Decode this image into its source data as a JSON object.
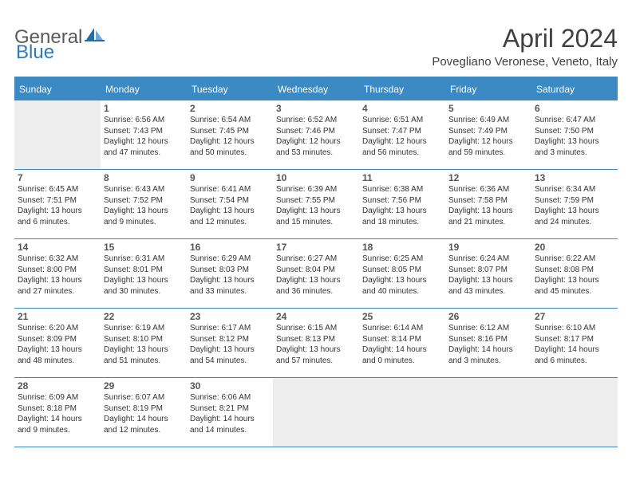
{
  "logo": {
    "text_gray": "General",
    "text_blue": "Blue"
  },
  "title": "April 2024",
  "location": "Povegliano Veronese, Veneto, Italy",
  "weekdays": [
    "Sunday",
    "Monday",
    "Tuesday",
    "Wednesday",
    "Thursday",
    "Friday",
    "Saturday"
  ],
  "colors": {
    "header_bg": "#3b8ac4",
    "header_text": "#ffffff",
    "shaded_cell": "#ededee",
    "logo_gray": "#5a5a5a",
    "logo_blue": "#2f7ab8"
  },
  "weeks": [
    [
      {
        "num": "",
        "shaded": true,
        "lines": []
      },
      {
        "num": "1",
        "shaded": false,
        "lines": [
          "Sunrise: 6:56 AM",
          "Sunset: 7:43 PM",
          "Daylight: 12 hours",
          "and 47 minutes."
        ]
      },
      {
        "num": "2",
        "shaded": false,
        "lines": [
          "Sunrise: 6:54 AM",
          "Sunset: 7:45 PM",
          "Daylight: 12 hours",
          "and 50 minutes."
        ]
      },
      {
        "num": "3",
        "shaded": false,
        "lines": [
          "Sunrise: 6:52 AM",
          "Sunset: 7:46 PM",
          "Daylight: 12 hours",
          "and 53 minutes."
        ]
      },
      {
        "num": "4",
        "shaded": false,
        "lines": [
          "Sunrise: 6:51 AM",
          "Sunset: 7:47 PM",
          "Daylight: 12 hours",
          "and 56 minutes."
        ]
      },
      {
        "num": "5",
        "shaded": false,
        "lines": [
          "Sunrise: 6:49 AM",
          "Sunset: 7:49 PM",
          "Daylight: 12 hours",
          "and 59 minutes."
        ]
      },
      {
        "num": "6",
        "shaded": false,
        "lines": [
          "Sunrise: 6:47 AM",
          "Sunset: 7:50 PM",
          "Daylight: 13 hours",
          "and 3 minutes."
        ]
      }
    ],
    [
      {
        "num": "7",
        "shaded": false,
        "lines": [
          "Sunrise: 6:45 AM",
          "Sunset: 7:51 PM",
          "Daylight: 13 hours",
          "and 6 minutes."
        ]
      },
      {
        "num": "8",
        "shaded": false,
        "lines": [
          "Sunrise: 6:43 AM",
          "Sunset: 7:52 PM",
          "Daylight: 13 hours",
          "and 9 minutes."
        ]
      },
      {
        "num": "9",
        "shaded": false,
        "lines": [
          "Sunrise: 6:41 AM",
          "Sunset: 7:54 PM",
          "Daylight: 13 hours",
          "and 12 minutes."
        ]
      },
      {
        "num": "10",
        "shaded": false,
        "lines": [
          "Sunrise: 6:39 AM",
          "Sunset: 7:55 PM",
          "Daylight: 13 hours",
          "and 15 minutes."
        ]
      },
      {
        "num": "11",
        "shaded": false,
        "lines": [
          "Sunrise: 6:38 AM",
          "Sunset: 7:56 PM",
          "Daylight: 13 hours",
          "and 18 minutes."
        ]
      },
      {
        "num": "12",
        "shaded": false,
        "lines": [
          "Sunrise: 6:36 AM",
          "Sunset: 7:58 PM",
          "Daylight: 13 hours",
          "and 21 minutes."
        ]
      },
      {
        "num": "13",
        "shaded": false,
        "lines": [
          "Sunrise: 6:34 AM",
          "Sunset: 7:59 PM",
          "Daylight: 13 hours",
          "and 24 minutes."
        ]
      }
    ],
    [
      {
        "num": "14",
        "shaded": false,
        "lines": [
          "Sunrise: 6:32 AM",
          "Sunset: 8:00 PM",
          "Daylight: 13 hours",
          "and 27 minutes."
        ]
      },
      {
        "num": "15",
        "shaded": false,
        "lines": [
          "Sunrise: 6:31 AM",
          "Sunset: 8:01 PM",
          "Daylight: 13 hours",
          "and 30 minutes."
        ]
      },
      {
        "num": "16",
        "shaded": false,
        "lines": [
          "Sunrise: 6:29 AM",
          "Sunset: 8:03 PM",
          "Daylight: 13 hours",
          "and 33 minutes."
        ]
      },
      {
        "num": "17",
        "shaded": false,
        "lines": [
          "Sunrise: 6:27 AM",
          "Sunset: 8:04 PM",
          "Daylight: 13 hours",
          "and 36 minutes."
        ]
      },
      {
        "num": "18",
        "shaded": false,
        "lines": [
          "Sunrise: 6:25 AM",
          "Sunset: 8:05 PM",
          "Daylight: 13 hours",
          "and 40 minutes."
        ]
      },
      {
        "num": "19",
        "shaded": false,
        "lines": [
          "Sunrise: 6:24 AM",
          "Sunset: 8:07 PM",
          "Daylight: 13 hours",
          "and 43 minutes."
        ]
      },
      {
        "num": "20",
        "shaded": false,
        "lines": [
          "Sunrise: 6:22 AM",
          "Sunset: 8:08 PM",
          "Daylight: 13 hours",
          "and 45 minutes."
        ]
      }
    ],
    [
      {
        "num": "21",
        "shaded": false,
        "lines": [
          "Sunrise: 6:20 AM",
          "Sunset: 8:09 PM",
          "Daylight: 13 hours",
          "and 48 minutes."
        ]
      },
      {
        "num": "22",
        "shaded": false,
        "lines": [
          "Sunrise: 6:19 AM",
          "Sunset: 8:10 PM",
          "Daylight: 13 hours",
          "and 51 minutes."
        ]
      },
      {
        "num": "23",
        "shaded": false,
        "lines": [
          "Sunrise: 6:17 AM",
          "Sunset: 8:12 PM",
          "Daylight: 13 hours",
          "and 54 minutes."
        ]
      },
      {
        "num": "24",
        "shaded": false,
        "lines": [
          "Sunrise: 6:15 AM",
          "Sunset: 8:13 PM",
          "Daylight: 13 hours",
          "and 57 minutes."
        ]
      },
      {
        "num": "25",
        "shaded": false,
        "lines": [
          "Sunrise: 6:14 AM",
          "Sunset: 8:14 PM",
          "Daylight: 14 hours",
          "and 0 minutes."
        ]
      },
      {
        "num": "26",
        "shaded": false,
        "lines": [
          "Sunrise: 6:12 AM",
          "Sunset: 8:16 PM",
          "Daylight: 14 hours",
          "and 3 minutes."
        ]
      },
      {
        "num": "27",
        "shaded": false,
        "lines": [
          "Sunrise: 6:10 AM",
          "Sunset: 8:17 PM",
          "Daylight: 14 hours",
          "and 6 minutes."
        ]
      }
    ],
    [
      {
        "num": "28",
        "shaded": false,
        "lines": [
          "Sunrise: 6:09 AM",
          "Sunset: 8:18 PM",
          "Daylight: 14 hours",
          "and 9 minutes."
        ]
      },
      {
        "num": "29",
        "shaded": false,
        "lines": [
          "Sunrise: 6:07 AM",
          "Sunset: 8:19 PM",
          "Daylight: 14 hours",
          "and 12 minutes."
        ]
      },
      {
        "num": "30",
        "shaded": false,
        "lines": [
          "Sunrise: 6:06 AM",
          "Sunset: 8:21 PM",
          "Daylight: 14 hours",
          "and 14 minutes."
        ]
      },
      {
        "num": "",
        "shaded": true,
        "lines": []
      },
      {
        "num": "",
        "shaded": true,
        "lines": []
      },
      {
        "num": "",
        "shaded": true,
        "lines": []
      },
      {
        "num": "",
        "shaded": true,
        "lines": []
      }
    ]
  ]
}
